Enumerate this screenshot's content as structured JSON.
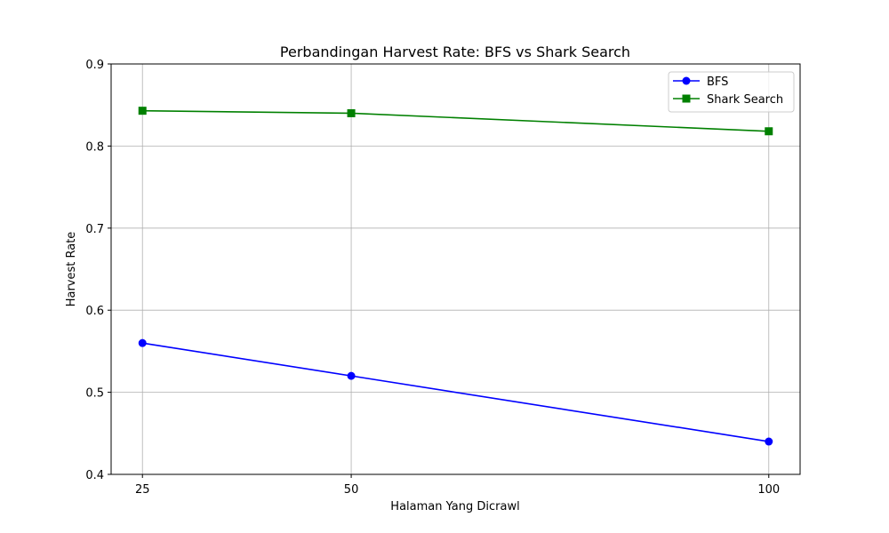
{
  "chart_data": {
    "type": "line",
    "title": "Perbandingan Harvest Rate: BFS vs Shark Search",
    "xlabel": "Halaman Yang Dicrawl",
    "ylabel": "Harvest Rate",
    "x": [
      25,
      50,
      100
    ],
    "xticks": [
      "25",
      "50",
      "100"
    ],
    "xlim": [
      21.25,
      103.75
    ],
    "ylim": [
      0.4,
      0.9
    ],
    "yticks": [
      "0.4",
      "0.5",
      "0.6",
      "0.7",
      "0.8",
      "0.9"
    ],
    "grid": true,
    "legend_position": "top-right",
    "series": [
      {
        "name": "BFS",
        "values": [
          0.56,
          0.52,
          0.44
        ],
        "color": "#0000ff",
        "marker": "circle"
      },
      {
        "name": "Shark Search",
        "values": [
          0.843,
          0.84,
          0.818
        ],
        "color": "#008000",
        "marker": "square"
      }
    ]
  }
}
